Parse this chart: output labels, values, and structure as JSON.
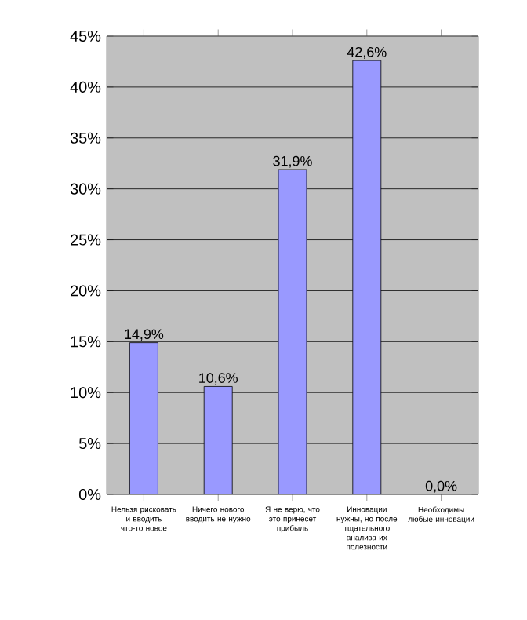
{
  "chart_data": {
    "type": "bar",
    "categories": [
      "Нельзя рисковать и вводить что-то новое",
      "Ничего нового вводить не нужно",
      "Я не верю, что это принесет прибыль",
      "Инновации нужны, но после тщательного анализа их полезности",
      "Необходимы любые инновации"
    ],
    "values": [
      14.9,
      10.6,
      31.9,
      42.6,
      0.0
    ],
    "value_labels": [
      "14,9%",
      "10,6%",
      "31,9%",
      "42,6%",
      "0,0%"
    ],
    "color": "#9999ff",
    "ylim": [
      0,
      45
    ],
    "yticks": [
      {
        "value": 0,
        "label": "0%"
      },
      {
        "value": 5,
        "label": "5%"
      },
      {
        "value": 10,
        "label": "10%"
      },
      {
        "value": 15,
        "label": "15%"
      },
      {
        "value": 20,
        "label": "20%"
      },
      {
        "value": 25,
        "label": "25%"
      },
      {
        "value": 30,
        "label": "30%"
      },
      {
        "value": 35,
        "label": "35%"
      },
      {
        "value": 40,
        "label": "40%"
      },
      {
        "value": 45,
        "label": "45%"
      }
    ],
    "grid": "y"
  }
}
